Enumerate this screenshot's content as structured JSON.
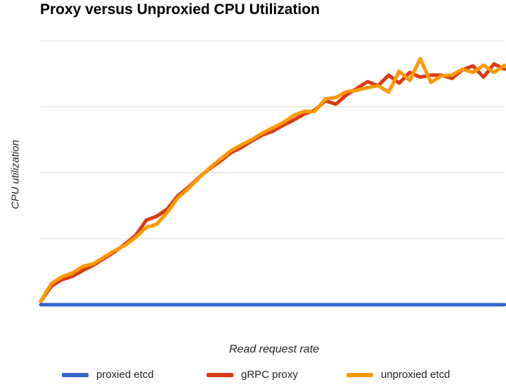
{
  "chart_data": {
    "type": "line",
    "title": "Proxy versus Unproxied CPU Utilization",
    "xlabel": "Read request rate",
    "ylabel": "CPU utilization",
    "ylim": [
      0,
      4
    ],
    "grid": true,
    "legend_position": "bottom",
    "x": [
      0,
      1,
      2,
      3,
      4,
      5,
      6,
      7,
      8,
      9,
      10,
      11,
      12,
      13,
      14,
      15,
      16,
      17,
      18,
      19,
      20,
      21,
      22,
      23,
      24,
      25,
      26,
      27,
      28,
      29,
      30,
      31,
      32,
      33,
      34,
      35,
      36,
      37,
      38,
      39,
      40,
      41,
      42,
      43,
      44
    ],
    "series": [
      {
        "name": "proxied etcd",
        "color": "#3366cc",
        "values": [
          0.0,
          0.0,
          0.0,
          0.0,
          0.0,
          0.0,
          0.0,
          0.0,
          0.0,
          0.0,
          0.0,
          0.0,
          0.0,
          0.0,
          0.0,
          0.0,
          0.0,
          0.0,
          0.0,
          0.0,
          0.0,
          0.0,
          0.0,
          0.0,
          0.0,
          0.0,
          0.0,
          0.0,
          0.0,
          0.0,
          0.0,
          0.0,
          0.0,
          0.0,
          0.0,
          0.0,
          0.0,
          0.0,
          0.0,
          0.0,
          0.0,
          0.0,
          0.0,
          0.0,
          0.0
        ]
      },
      {
        "name": "gRPC proxy",
        "color": "#dc3912",
        "values": [
          0.05,
          0.28,
          0.38,
          0.43,
          0.52,
          0.6,
          0.7,
          0.8,
          0.92,
          1.05,
          1.28,
          1.34,
          1.45,
          1.65,
          1.78,
          1.93,
          2.06,
          2.17,
          2.3,
          2.38,
          2.48,
          2.57,
          2.63,
          2.72,
          2.8,
          2.89,
          2.95,
          3.09,
          3.04,
          3.18,
          3.28,
          3.38,
          3.32,
          3.48,
          3.36,
          3.52,
          3.45,
          3.48,
          3.48,
          3.43,
          3.56,
          3.62,
          3.45,
          3.65,
          3.57
        ]
      },
      {
        "name": "unproxied etcd",
        "color": "#ff9900",
        "values": [
          0.05,
          0.32,
          0.42,
          0.48,
          0.58,
          0.62,
          0.72,
          0.82,
          0.9,
          1.02,
          1.17,
          1.22,
          1.4,
          1.62,
          1.76,
          1.92,
          2.07,
          2.2,
          2.33,
          2.42,
          2.5,
          2.6,
          2.68,
          2.76,
          2.87,
          2.93,
          2.93,
          3.12,
          3.14,
          3.23,
          3.25,
          3.29,
          3.32,
          3.22,
          3.54,
          3.4,
          3.73,
          3.37,
          3.47,
          3.48,
          3.57,
          3.52,
          3.63,
          3.52,
          3.63
        ]
      }
    ]
  }
}
